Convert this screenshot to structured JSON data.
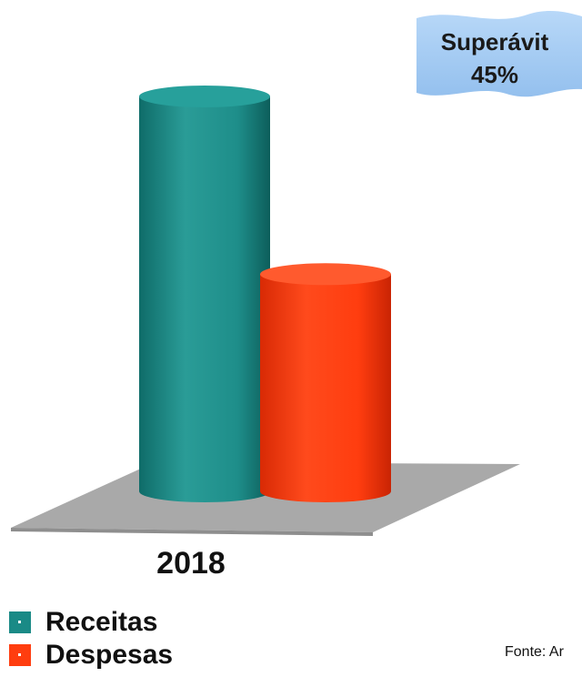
{
  "chart_data": {
    "type": "bar",
    "categories": [
      "2018"
    ],
    "series": [
      {
        "name": "Receitas",
        "values": [
          100
        ]
      },
      {
        "name": "Despesas",
        "values": [
          55
        ]
      }
    ],
    "ylim": [
      0,
      100
    ],
    "annotation": {
      "line1": "Superávit",
      "line2": "45%"
    },
    "legend_placement": "bottom-left",
    "grid": false
  },
  "colors": {
    "receitas": "#1a8a86",
    "despesas": "#ff3d0f",
    "banner": "#a9cdf3",
    "floor": "#a9a9a9"
  },
  "source_text": "Fonte: Ar"
}
